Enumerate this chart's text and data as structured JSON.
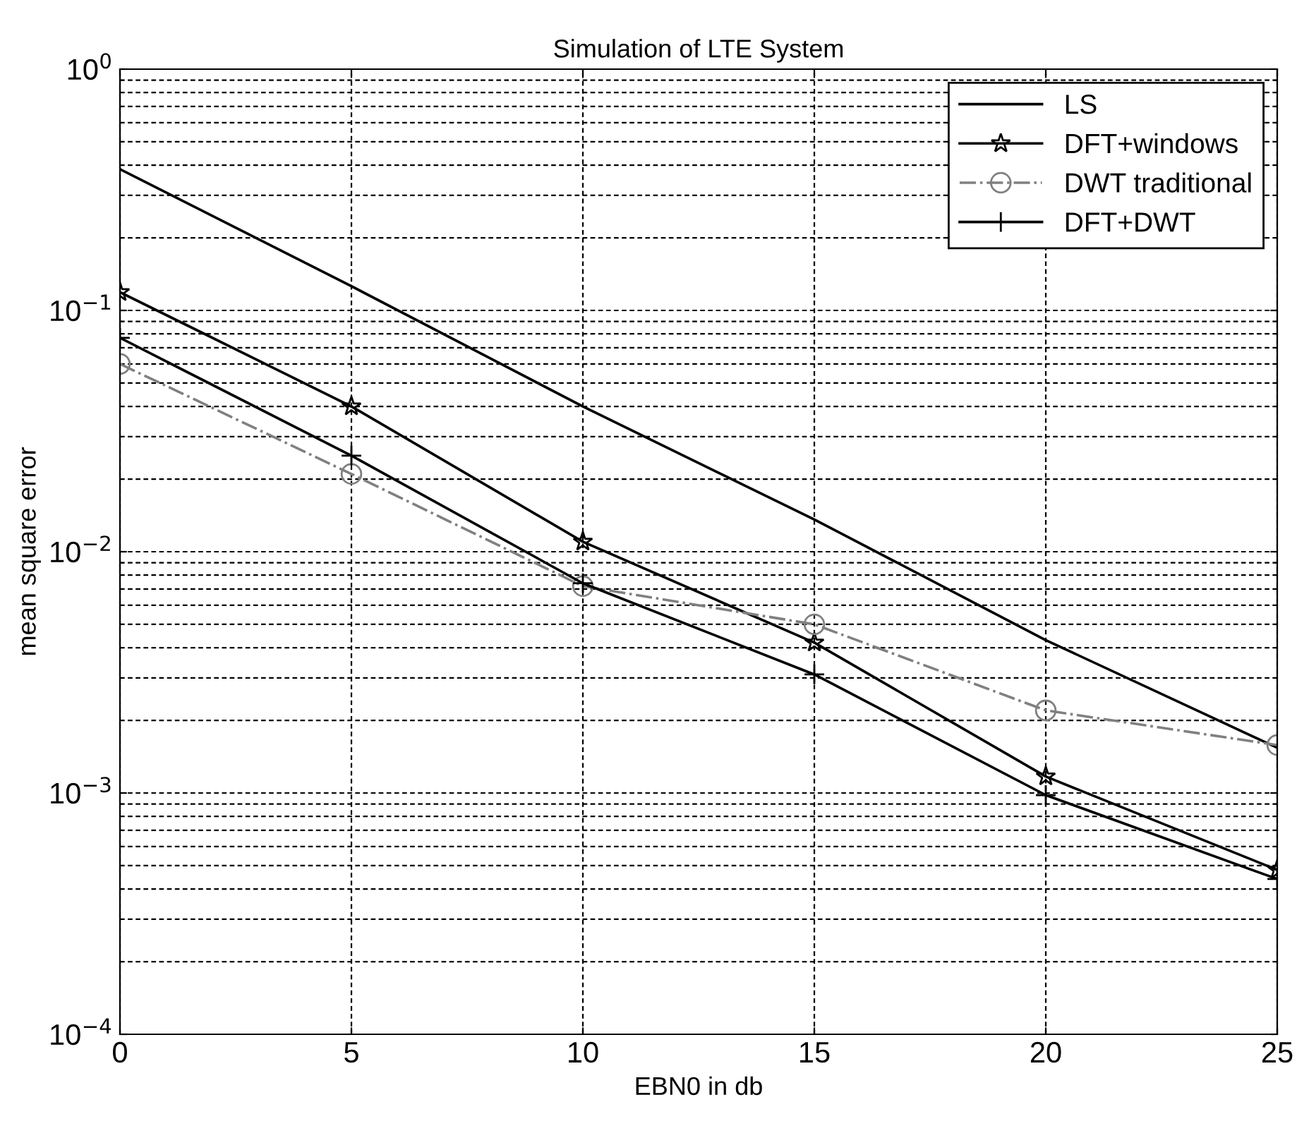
{
  "chart_data": {
    "type": "line",
    "title": "Simulation of LTE System",
    "xlabel": "EBN0 in db",
    "ylabel": "mean square error",
    "x": [
      0,
      5,
      10,
      15,
      20,
      25
    ],
    "series": [
      {
        "name": "LS",
        "color": "#000000",
        "marker": "none",
        "line_style": "solid",
        "values": [
          0.385,
          0.126,
          0.04,
          0.0136,
          0.0043,
          0.00154
        ]
      },
      {
        "name": "DFT+windows",
        "color": "#000000",
        "marker": "star",
        "line_style": "solid",
        "values": [
          0.119,
          0.04,
          0.011,
          0.0042,
          0.00117,
          0.00048
        ]
      },
      {
        "name": "DWT traditional",
        "color": "#808080",
        "marker": "circle",
        "line_style": "dotted",
        "values": [
          0.06,
          0.021,
          0.0072,
          0.005,
          0.0022,
          0.00158
        ]
      },
      {
        "name": "DFT+DWT",
        "color": "#000000",
        "marker": "cross",
        "line_style": "solid",
        "values": [
          0.077,
          0.025,
          0.0074,
          0.0031,
          0.00098,
          0.00044
        ]
      }
    ],
    "log": "y",
    "xlim": [
      0,
      25
    ],
    "ylim": [
      0.0001,
      1
    ],
    "xticks": [
      0,
      5,
      10,
      15,
      20,
      25
    ],
    "yticks": [
      {
        "value": 0.0001,
        "label": "10$^{−4}$"
      },
      {
        "value": 0.001,
        "label": "10$^{−3}$"
      },
      {
        "value": 0.01,
        "label": "10$^{−2}$"
      },
      {
        "value": 0.1,
        "label": "10$^{−1}$"
      },
      {
        "value": 1,
        "label": "10$^{0}$"
      }
    ],
    "grid": true,
    "legend": "top right"
  }
}
